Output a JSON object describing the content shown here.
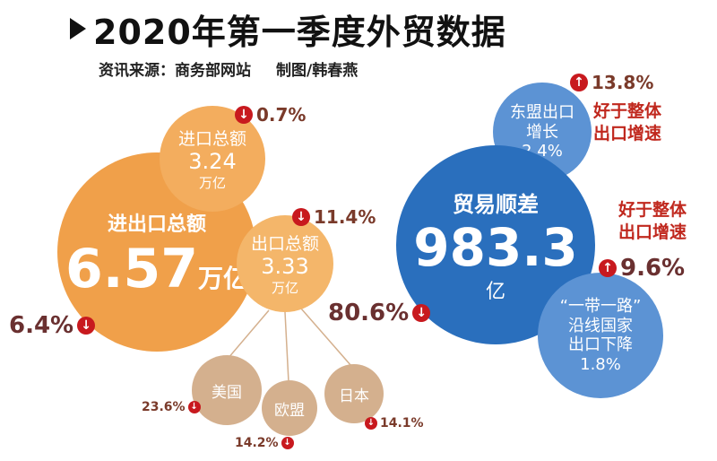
{
  "title": "2020年第一季度外贸数据",
  "subtitle": {
    "source": "资讯来源：商务部网站",
    "credit": "制图/韩春燕"
  },
  "total": {
    "label": "进出口总额",
    "value": "6.57",
    "unit": "万亿",
    "change": "6.4%",
    "direction": "down"
  },
  "imports": {
    "label": "进口总额",
    "value": "3.24",
    "unit": "万亿",
    "change": "0.7%",
    "direction": "down"
  },
  "exports": {
    "label": "出口总额",
    "value": "3.33",
    "unit": "万亿",
    "change": "11.4%",
    "direction": "down"
  },
  "export_partners": [
    {
      "label": "美国",
      "change": "23.6%",
      "direction": "down"
    },
    {
      "label": "欧盟",
      "change": "14.2%",
      "direction": "down"
    },
    {
      "label": "日本",
      "change": "14.1%",
      "direction": "down"
    }
  ],
  "surplus": {
    "label": "贸易顺差",
    "value": "983.3",
    "unit": "亿",
    "change": "80.6%",
    "direction": "down"
  },
  "asean": {
    "label_line1": "东盟出口",
    "label_line2": "增长",
    "value": "2.4%",
    "change": "13.8%",
    "direction": "up",
    "note_line1": "好于整体",
    "note_line2": "出口增速"
  },
  "belt_road": {
    "label_line1": "“一带一路”",
    "label_line2": "沿线国家",
    "label_line3": "出口下降",
    "value": "1.8%",
    "change": "9.6%",
    "direction": "up",
    "note_line1": "好于整体",
    "note_line2": "出口增速"
  },
  "colors": {
    "orange": "#f0a04a",
    "tan": "#d4b08e",
    "blue_dark": "#2a6fbd",
    "blue_light": "#5c93d4",
    "arrow_red": "#c8191e",
    "note_red": "#c0281e"
  },
  "icons": {
    "down": "down-arrow-icon",
    "up": "up-arrow-icon"
  }
}
